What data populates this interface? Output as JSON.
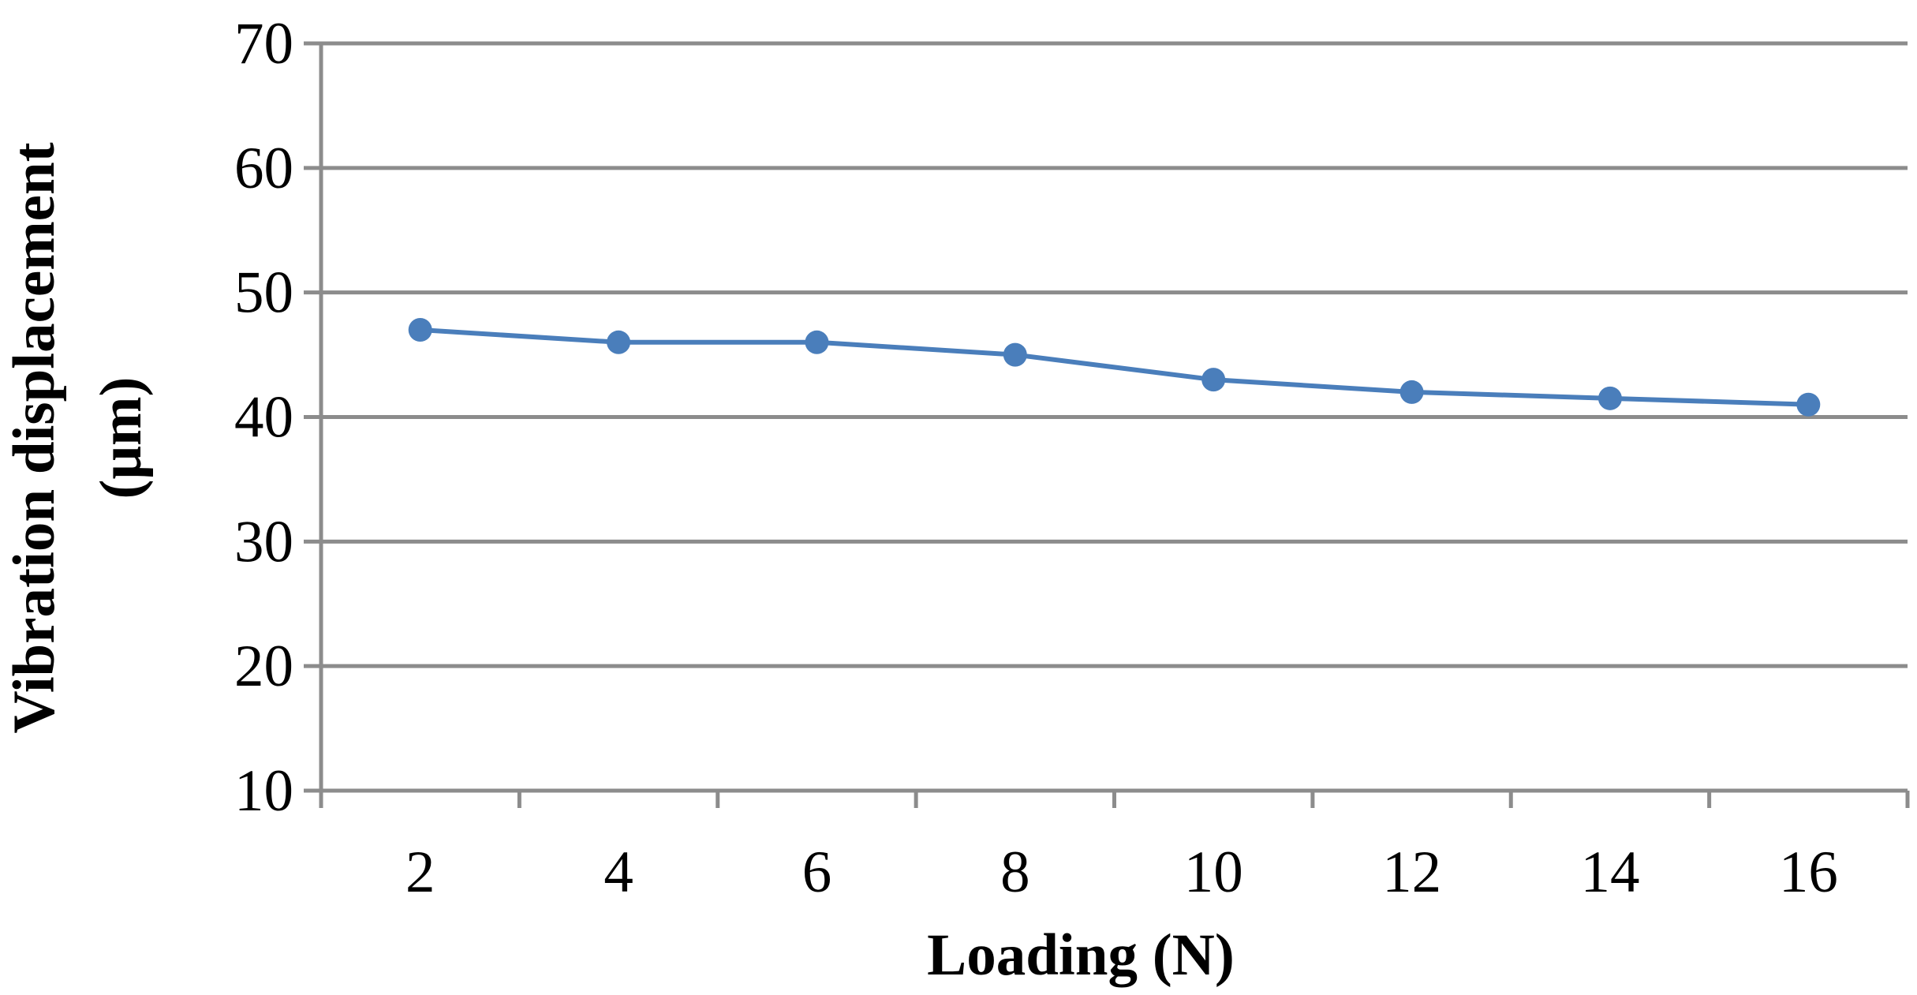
{
  "chart_data": {
    "type": "line",
    "xlabel": "Loading (N)",
    "ylabel_line1": "Vibration displacement",
    "ylabel_line2": "(μm)",
    "categories": [
      "2",
      "4",
      "6",
      "8",
      "10",
      "12",
      "14",
      "16"
    ],
    "series": [
      {
        "values": [
          47,
          46,
          46,
          45,
          43,
          42,
          41.5,
          41
        ],
        "color": "#4a7ebb"
      }
    ],
    "ylim": [
      10,
      70
    ],
    "yticks": [
      "10",
      "20",
      "30",
      "40",
      "50",
      "60",
      "70"
    ],
    "grid": true,
    "legend": "none"
  }
}
